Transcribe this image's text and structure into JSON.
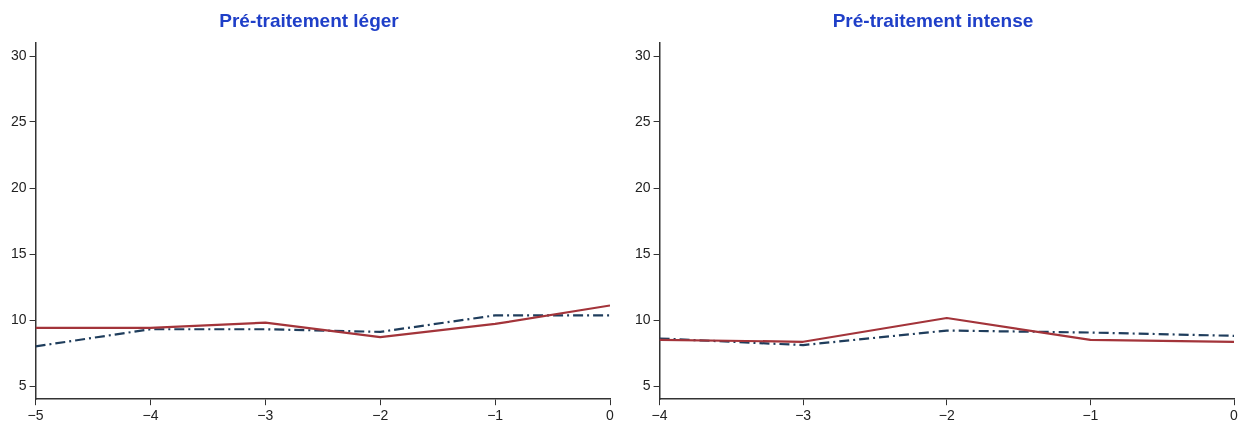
{
  "chart_data": [
    {
      "type": "line",
      "title": "Pré-traitement léger",
      "x": [
        -5,
        -4,
        -3,
        -2,
        -1,
        0
      ],
      "xlim": [
        -5,
        0
      ],
      "xticks": [
        -5,
        -4,
        -3,
        -2,
        -1,
        0
      ],
      "ylim": [
        4,
        31
      ],
      "yticks": [
        5,
        10,
        15,
        20,
        25,
        30
      ],
      "grid": false,
      "legend": false,
      "marker": "none",
      "series": [
        {
          "color": "#a3343a",
          "line_style": "solid",
          "values": [
            9.4,
            9.4,
            9.8,
            8.7,
            9.7,
            11.1
          ]
        },
        {
          "color": "#1f3d5c",
          "line_style": "dashdot",
          "values": [
            8.0,
            9.3,
            9.3,
            9.1,
            10.35,
            10.35
          ]
        }
      ]
    },
    {
      "type": "line",
      "title": "Pré-traitement intense",
      "x": [
        -4,
        -3,
        -2,
        -1,
        0
      ],
      "xlim": [
        -4,
        0
      ],
      "xticks": [
        -4,
        -3,
        -2,
        -1,
        0
      ],
      "ylim": [
        4,
        31
      ],
      "yticks": [
        5,
        10,
        15,
        20,
        25,
        30
      ],
      "grid": false,
      "legend": false,
      "marker": "none",
      "series": [
        {
          "color": "#a3343a",
          "line_style": "solid",
          "values": [
            8.5,
            8.35,
            10.15,
            8.5,
            8.35
          ]
        },
        {
          "color": "#1f3d5c",
          "line_style": "dashdot",
          "values": [
            8.6,
            8.1,
            9.2,
            9.05,
            8.8
          ]
        }
      ]
    }
  ]
}
